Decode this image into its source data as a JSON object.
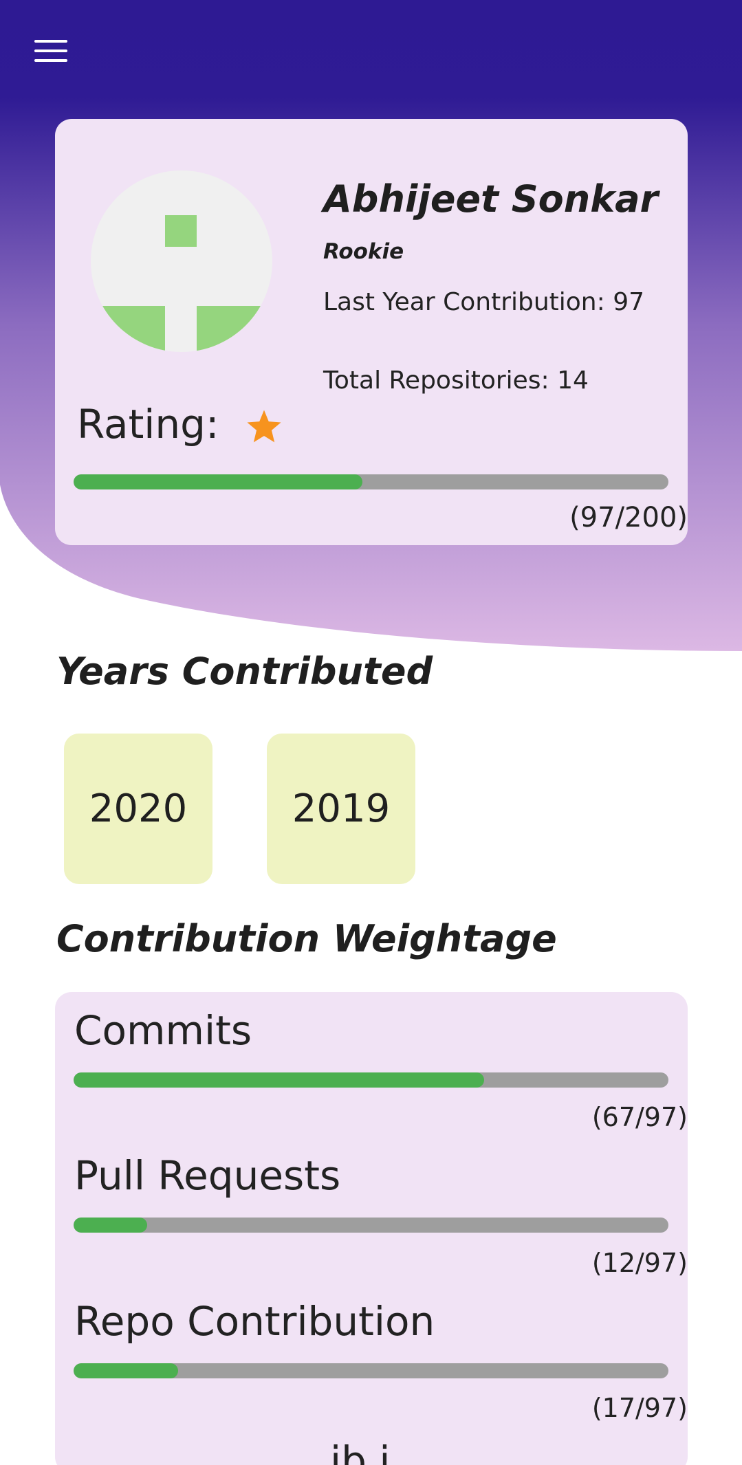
{
  "colors": {
    "header_top": "#2e1a93",
    "header_bottom": "#dcb8e4",
    "card_bg": "#f1e3f5",
    "progress_fill": "#4caf50",
    "progress_track": "#9e9e9e",
    "year_chip_bg": "#eff3c2",
    "star": "#f7931e",
    "avatar_accent": "#95d57e"
  },
  "header": {
    "menu_icon": "hamburger-menu-icon"
  },
  "profile": {
    "name": "Abhijeet Sonkar",
    "rank": "Rookie",
    "last_year_contribution": "Last Year Contribution: 97",
    "total_repositories": "Total Repositories: 14",
    "rating_label": "Rating:",
    "rating_stars": 1,
    "progress_value": 97,
    "progress_max": 200,
    "progress_text": "(97/200)"
  },
  "years_section": {
    "title": "Years Contributed",
    "years": [
      "2020",
      "2019"
    ]
  },
  "weightage_section": {
    "title": "Contribution Weightage",
    "items": [
      {
        "label": "Commits",
        "value": 67,
        "max": 97,
        "text": "(67/97)"
      },
      {
        "label": "Pull Requests",
        "value": 12,
        "max": 97,
        "text": "(12/97)"
      },
      {
        "label": "Repo Contribution",
        "value": 17,
        "max": 97,
        "text": "(17/97)"
      }
    ]
  }
}
